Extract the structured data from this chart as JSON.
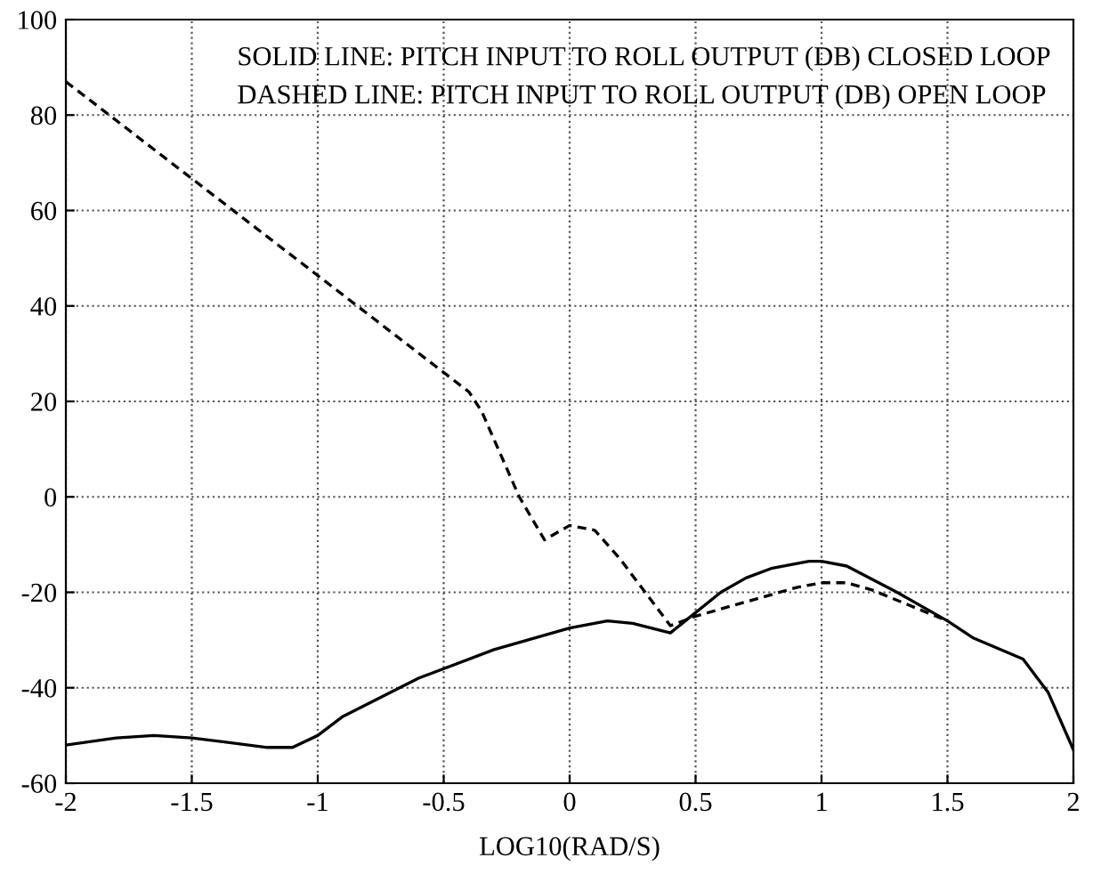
{
  "chart_data": {
    "type": "line",
    "xlabel": "LOG10(RAD/S)",
    "annotations": [
      "SOLID LINE: PITCH INPUT TO ROLL OUTPUT (DB) CLOSED LOOP",
      "DASHED LINE: PITCH INPUT TO ROLL OUTPUT (DB) OPEN LOOP"
    ],
    "series": [
      {
        "color": "#000000",
        "line_style": "solid",
        "x": [
          -2,
          -1.8,
          -1.65,
          -1.5,
          -1.2,
          -1.1,
          -1,
          -0.9,
          -0.6,
          -0.3,
          0,
          0.15,
          0.25,
          0.4,
          0.6,
          0.7,
          0.8,
          0.95,
          1.0,
          1.1,
          1.3,
          1.5,
          1.6,
          1.8,
          1.9,
          2.0
        ],
        "values": [
          -52,
          -50.5,
          -50,
          -50.5,
          -52.5,
          -52.5,
          -50,
          -46,
          -38,
          -32,
          -27.5,
          -26,
          -26.5,
          -28.5,
          -20,
          -17,
          -15,
          -13.5,
          -13.5,
          -14.5,
          -20,
          -26,
          -29.5,
          -34,
          -41,
          -53
        ]
      },
      {
        "color": "#000000",
        "line_style": "dashed",
        "x": [
          -2,
          -0.4,
          -0.35,
          -0.3,
          -0.2,
          -0.1,
          0,
          0.1,
          0.2,
          0.3,
          0.4,
          0.5,
          0.7,
          0.9,
          1.0,
          1.1,
          1.2,
          1.5
        ],
        "values": [
          87,
          22,
          18,
          12,
          0,
          -9,
          -6,
          -7,
          -13,
          -20,
          -27,
          -25,
          -22,
          -19,
          -18,
          -18,
          -19.5,
          -26
        ]
      }
    ],
    "xlim": [
      -2,
      2
    ],
    "ylim": [
      -60,
      100
    ],
    "xticks": [
      -2,
      -1.5,
      -1,
      -0.5,
      0,
      0.5,
      1,
      1.5,
      2
    ],
    "yticks": [
      -60,
      -40,
      -20,
      0,
      20,
      40,
      60,
      80,
      100
    ],
    "grid": true
  }
}
